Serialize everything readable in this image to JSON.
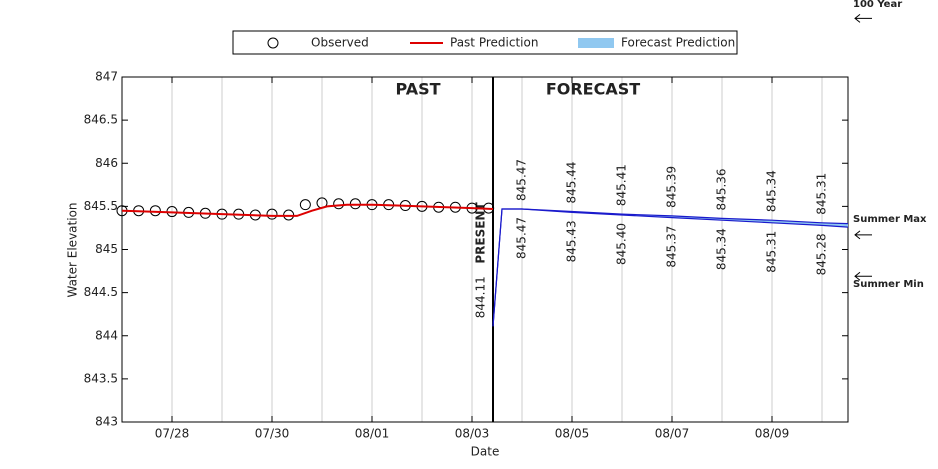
{
  "chart_data": {
    "type": "line",
    "xlabel": "Date",
    "ylabel": "Water Elevation",
    "annotations": {
      "past": "PAST",
      "forecast": "FORECAST",
      "present": "PRESENT"
    },
    "present_x": 215.42,
    "xlim": [
      208,
      222.52
    ],
    "xticks": [
      {
        "value": 209,
        "label": "07/28"
      },
      {
        "value": 211,
        "label": "07/30"
      },
      {
        "value": 213,
        "label": "08/01"
      },
      {
        "value": 215,
        "label": "08/03"
      },
      {
        "value": 217,
        "label": "08/05"
      },
      {
        "value": 219,
        "label": "08/07"
      },
      {
        "value": 221,
        "label": "08/09"
      }
    ],
    "xminor": [
      210,
      212,
      214,
      216,
      218,
      220,
      222
    ],
    "ylim": [
      843,
      847
    ],
    "yticks": [
      843,
      843.5,
      844,
      844.5,
      845,
      845.5,
      846,
      846.5,
      847
    ],
    "grid": "x",
    "legend_position": "top",
    "series": [
      {
        "name": "Observed",
        "style": "marker",
        "color": "#000000",
        "x": [
          208,
          208.333,
          208.667,
          209,
          209.333,
          209.667,
          210,
          210.333,
          210.667,
          211,
          211.333,
          211.667,
          212,
          212.333,
          212.667,
          213,
          213.333,
          213.667,
          214,
          214.333,
          214.667,
          215,
          215.333
        ],
        "values": [
          845.45,
          845.45,
          845.45,
          845.44,
          845.43,
          845.42,
          845.41,
          845.41,
          845.4,
          845.41,
          845.4,
          845.52,
          845.54,
          845.53,
          845.53,
          845.52,
          845.52,
          845.51,
          845.5,
          845.49,
          845.49,
          845.48,
          845.48
        ]
      },
      {
        "name": "Past Prediction",
        "style": "line",
        "color": "#dd0000",
        "x": [
          208,
          209,
          210,
          211,
          211.5,
          211.8,
          212.1,
          212.5,
          213,
          213.5,
          214,
          214.5,
          215,
          215.42
        ],
        "values": [
          845.45,
          845.43,
          845.41,
          845.39,
          845.39,
          845.45,
          845.5,
          845.52,
          845.52,
          845.51,
          845.5,
          845.49,
          845.48,
          845.47
        ]
      },
      {
        "name": "Forecast Prediction",
        "style": "band",
        "color": "#90c8f0",
        "line_color": "#1a1acc",
        "x": [
          215.42,
          215.6,
          216,
          217,
          218,
          219,
          220,
          221,
          222,
          222.52
        ],
        "upper": [
          844.11,
          845.47,
          845.47,
          845.44,
          845.41,
          845.39,
          845.36,
          845.34,
          845.31,
          845.3
        ],
        "lower": [
          844.11,
          845.47,
          845.47,
          845.43,
          845.4,
          845.37,
          845.34,
          845.31,
          845.28,
          845.26
        ],
        "upper_labels": [
          "844.11",
          null,
          "845.47",
          "845.44",
          "845.41",
          "845.39",
          "845.36",
          "845.34",
          "845.31",
          null
        ],
        "lower_labels": [
          null,
          null,
          "845.47",
          "845.43",
          "845.40",
          "845.37",
          "845.34",
          "845.31",
          "845.28",
          null
        ]
      }
    ],
    "reference_levels": [
      {
        "label": "100 Year",
        "value": 847.68
      },
      {
        "label": "Summer Max",
        "value": 845.17
      },
      {
        "label": "Summer Min",
        "value": 844.69
      }
    ]
  }
}
